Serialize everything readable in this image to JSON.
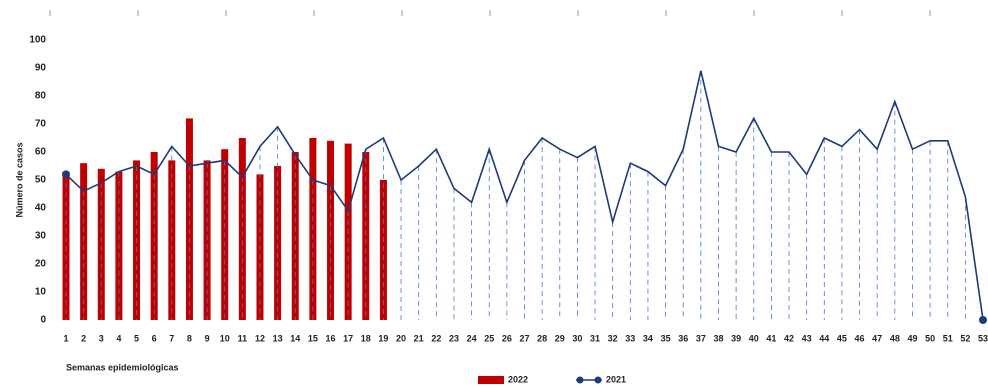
{
  "chart_data": {
    "type": "bar-line",
    "x_label": "Semanas epidemiológicas",
    "y_label": "Número de casos",
    "categories": [
      "1",
      "2",
      "3",
      "4",
      "5",
      "6",
      "7",
      "8",
      "9",
      "10",
      "11",
      "12",
      "13",
      "14",
      "15",
      "16",
      "17",
      "18",
      "19",
      "20",
      "21",
      "22",
      "23",
      "24",
      "25",
      "26",
      "27",
      "28",
      "29",
      "30",
      "31",
      "32",
      "33",
      "34",
      "35",
      "36",
      "37",
      "38",
      "39",
      "40",
      "41",
      "42",
      "43",
      "44",
      "45",
      "46",
      "47",
      "48",
      "49",
      "50",
      "51",
      "52",
      "53"
    ],
    "series": [
      {
        "name": "2022",
        "kind": "bar",
        "color": "#c00000",
        "values": [
          53,
          56,
          54,
          53,
          57,
          60,
          57,
          72,
          57,
          61,
          65,
          52,
          55,
          60,
          65,
          64,
          63,
          60,
          50,
          null,
          null,
          null,
          null,
          null,
          null,
          null,
          null,
          null,
          null,
          null,
          null,
          null,
          null,
          null,
          null,
          null,
          null,
          null,
          null,
          null,
          null,
          null,
          null,
          null,
          null,
          null,
          null,
          null,
          null,
          null,
          null,
          null,
          null
        ]
      },
      {
        "name": "2021",
        "kind": "line",
        "color": "#1f3a7a",
        "values": [
          52,
          46,
          49,
          53,
          55,
          52,
          62,
          55,
          56,
          57,
          51,
          62,
          69,
          59,
          50,
          48,
          39,
          61,
          65,
          50,
          55,
          61,
          47,
          42,
          61,
          42,
          57,
          65,
          61,
          58,
          62,
          35,
          56,
          53,
          48,
          61,
          89,
          62,
          60,
          72,
          60,
          60,
          52,
          65,
          62,
          68,
          61,
          78,
          61,
          64,
          64,
          44,
          0
        ]
      }
    ],
    "ylim": [
      0,
      100
    ],
    "yticks": [
      0,
      10,
      20,
      30,
      40,
      50,
      60,
      70,
      80,
      90,
      100
    ]
  }
}
